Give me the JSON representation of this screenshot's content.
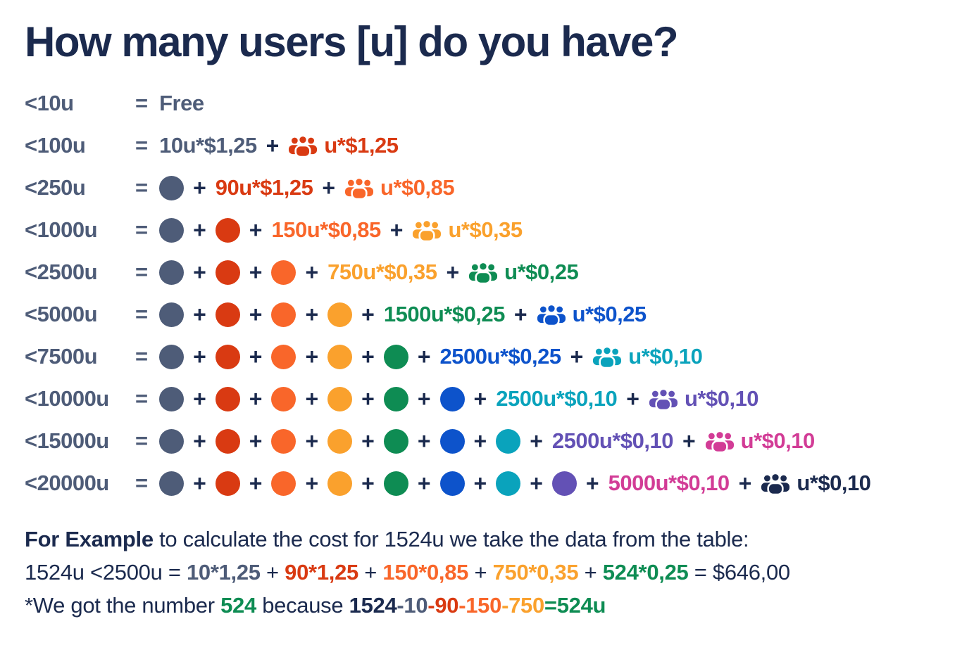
{
  "title": "How many users [u] do you have?",
  "symbols": {
    "equals": "=",
    "plus": "+"
  },
  "colors": {
    "navy": "#1b2a4e",
    "slate": "#4e5c78",
    "red": "#d93a12",
    "orange": "#f9662a",
    "amber": "#faa12d",
    "green": "#0e8c53",
    "blue": "#0d53cb",
    "cyan": "#0aa3bc",
    "purple": "#6351b5",
    "magenta": "#d23c96",
    "background": "#ffffff"
  },
  "tiers": [
    {
      "label": "<10u",
      "segments": [
        {
          "kind": "text",
          "text": "Free",
          "color": "slate"
        }
      ]
    },
    {
      "label": "<100u",
      "segments": [
        {
          "kind": "text",
          "text": "10u*$1,25",
          "color": "slate"
        },
        {
          "kind": "plus"
        },
        {
          "kind": "people",
          "color": "red"
        },
        {
          "kind": "text",
          "text": "u*$1,25",
          "color": "red"
        }
      ]
    },
    {
      "label": "<250u",
      "segments": [
        {
          "kind": "dot",
          "color": "slate"
        },
        {
          "kind": "plus"
        },
        {
          "kind": "text",
          "text": "90u*$1,25",
          "color": "red"
        },
        {
          "kind": "plus"
        },
        {
          "kind": "people",
          "color": "orange"
        },
        {
          "kind": "text",
          "text": "u*$0,85",
          "color": "orange"
        }
      ]
    },
    {
      "label": "<1000u",
      "segments": [
        {
          "kind": "dot",
          "color": "slate"
        },
        {
          "kind": "plus"
        },
        {
          "kind": "dot",
          "color": "red"
        },
        {
          "kind": "plus"
        },
        {
          "kind": "text",
          "text": "150u*$0,85",
          "color": "orange"
        },
        {
          "kind": "plus"
        },
        {
          "kind": "people",
          "color": "amber"
        },
        {
          "kind": "text",
          "text": "u*$0,35",
          "color": "amber"
        }
      ]
    },
    {
      "label": "<2500u",
      "segments": [
        {
          "kind": "dot",
          "color": "slate"
        },
        {
          "kind": "plus"
        },
        {
          "kind": "dot",
          "color": "red"
        },
        {
          "kind": "plus"
        },
        {
          "kind": "dot",
          "color": "orange"
        },
        {
          "kind": "plus"
        },
        {
          "kind": "text",
          "text": "750u*$0,35",
          "color": "amber"
        },
        {
          "kind": "plus"
        },
        {
          "kind": "people",
          "color": "green"
        },
        {
          "kind": "text",
          "text": "u*$0,25",
          "color": "green"
        }
      ]
    },
    {
      "label": "<5000u",
      "segments": [
        {
          "kind": "dot",
          "color": "slate"
        },
        {
          "kind": "plus"
        },
        {
          "kind": "dot",
          "color": "red"
        },
        {
          "kind": "plus"
        },
        {
          "kind": "dot",
          "color": "orange"
        },
        {
          "kind": "plus"
        },
        {
          "kind": "dot",
          "color": "amber"
        },
        {
          "kind": "plus"
        },
        {
          "kind": "text",
          "text": "1500u*$0,25",
          "color": "green"
        },
        {
          "kind": "plus"
        },
        {
          "kind": "people",
          "color": "blue"
        },
        {
          "kind": "text",
          "text": "u*$0,25",
          "color": "blue"
        }
      ]
    },
    {
      "label": "<7500u",
      "segments": [
        {
          "kind": "dot",
          "color": "slate"
        },
        {
          "kind": "plus"
        },
        {
          "kind": "dot",
          "color": "red"
        },
        {
          "kind": "plus"
        },
        {
          "kind": "dot",
          "color": "orange"
        },
        {
          "kind": "plus"
        },
        {
          "kind": "dot",
          "color": "amber"
        },
        {
          "kind": "plus"
        },
        {
          "kind": "dot",
          "color": "green"
        },
        {
          "kind": "plus"
        },
        {
          "kind": "text",
          "text": "2500u*$0,25",
          "color": "blue"
        },
        {
          "kind": "plus"
        },
        {
          "kind": "people",
          "color": "cyan"
        },
        {
          "kind": "text",
          "text": "u*$0,10",
          "color": "cyan"
        }
      ]
    },
    {
      "label": "<10000u",
      "segments": [
        {
          "kind": "dot",
          "color": "slate"
        },
        {
          "kind": "plus"
        },
        {
          "kind": "dot",
          "color": "red"
        },
        {
          "kind": "plus"
        },
        {
          "kind": "dot",
          "color": "orange"
        },
        {
          "kind": "plus"
        },
        {
          "kind": "dot",
          "color": "amber"
        },
        {
          "kind": "plus"
        },
        {
          "kind": "dot",
          "color": "green"
        },
        {
          "kind": "plus"
        },
        {
          "kind": "dot",
          "color": "blue"
        },
        {
          "kind": "plus"
        },
        {
          "kind": "text",
          "text": "2500u*$0,10",
          "color": "cyan"
        },
        {
          "kind": "plus"
        },
        {
          "kind": "people",
          "color": "purple"
        },
        {
          "kind": "text",
          "text": "u*$0,10",
          "color": "purple"
        }
      ]
    },
    {
      "label": "<15000u",
      "segments": [
        {
          "kind": "dot",
          "color": "slate"
        },
        {
          "kind": "plus"
        },
        {
          "kind": "dot",
          "color": "red"
        },
        {
          "kind": "plus"
        },
        {
          "kind": "dot",
          "color": "orange"
        },
        {
          "kind": "plus"
        },
        {
          "kind": "dot",
          "color": "amber"
        },
        {
          "kind": "plus"
        },
        {
          "kind": "dot",
          "color": "green"
        },
        {
          "kind": "plus"
        },
        {
          "kind": "dot",
          "color": "blue"
        },
        {
          "kind": "plus"
        },
        {
          "kind": "dot",
          "color": "cyan"
        },
        {
          "kind": "plus"
        },
        {
          "kind": "text",
          "text": "2500u*$0,10",
          "color": "purple"
        },
        {
          "kind": "plus"
        },
        {
          "kind": "people",
          "color": "magenta"
        },
        {
          "kind": "text",
          "text": "u*$0,10",
          "color": "magenta"
        }
      ]
    },
    {
      "label": "<20000u",
      "segments": [
        {
          "kind": "dot",
          "color": "slate"
        },
        {
          "kind": "plus"
        },
        {
          "kind": "dot",
          "color": "red"
        },
        {
          "kind": "plus"
        },
        {
          "kind": "dot",
          "color": "orange"
        },
        {
          "kind": "plus"
        },
        {
          "kind": "dot",
          "color": "amber"
        },
        {
          "kind": "plus"
        },
        {
          "kind": "dot",
          "color": "green"
        },
        {
          "kind": "plus"
        },
        {
          "kind": "dot",
          "color": "blue"
        },
        {
          "kind": "plus"
        },
        {
          "kind": "dot",
          "color": "cyan"
        },
        {
          "kind": "plus"
        },
        {
          "kind": "dot",
          "color": "purple"
        },
        {
          "kind": "plus"
        },
        {
          "kind": "text",
          "text": "5000u*$0,10",
          "color": "magenta"
        },
        {
          "kind": "plus"
        },
        {
          "kind": "people",
          "color": "navy"
        },
        {
          "kind": "text",
          "text": "u*$0,10",
          "color": "navy"
        }
      ]
    }
  ],
  "example": {
    "lines": [
      [
        {
          "text": "For Example",
          "color": "navy",
          "bold": true
        },
        {
          "text": " to calculate the cost for 1524u we take the data from the table:",
          "color": "navy"
        }
      ],
      [
        {
          "text": "1524u <2500u = ",
          "color": "navy"
        },
        {
          "text": "10*1,25",
          "color": "slate",
          "bold": true
        },
        {
          "text": " + ",
          "color": "navy"
        },
        {
          "text": "90*1,25",
          "color": "red",
          "bold": true
        },
        {
          "text": " + ",
          "color": "navy"
        },
        {
          "text": "150*0,85",
          "color": "orange",
          "bold": true
        },
        {
          "text": " + ",
          "color": "navy"
        },
        {
          "text": "750*0,35",
          "color": "amber",
          "bold": true
        },
        {
          "text": " + ",
          "color": "navy"
        },
        {
          "text": "524*0,25",
          "color": "green",
          "bold": true
        },
        {
          "text": " = $646,00",
          "color": "navy"
        }
      ],
      [
        {
          "text": "*We got the number ",
          "color": "navy"
        },
        {
          "text": "524",
          "color": "green",
          "bold": true
        },
        {
          "text": " because ",
          "color": "navy"
        },
        {
          "text": "1524",
          "color": "navy",
          "bold": true
        },
        {
          "text": "-10",
          "color": "slate",
          "bold": true
        },
        {
          "text": "-90",
          "color": "red",
          "bold": true
        },
        {
          "text": "-150",
          "color": "orange",
          "bold": true
        },
        {
          "text": "-750",
          "color": "amber",
          "bold": true
        },
        {
          "text": "=524u",
          "color": "green",
          "bold": true
        }
      ]
    ]
  }
}
